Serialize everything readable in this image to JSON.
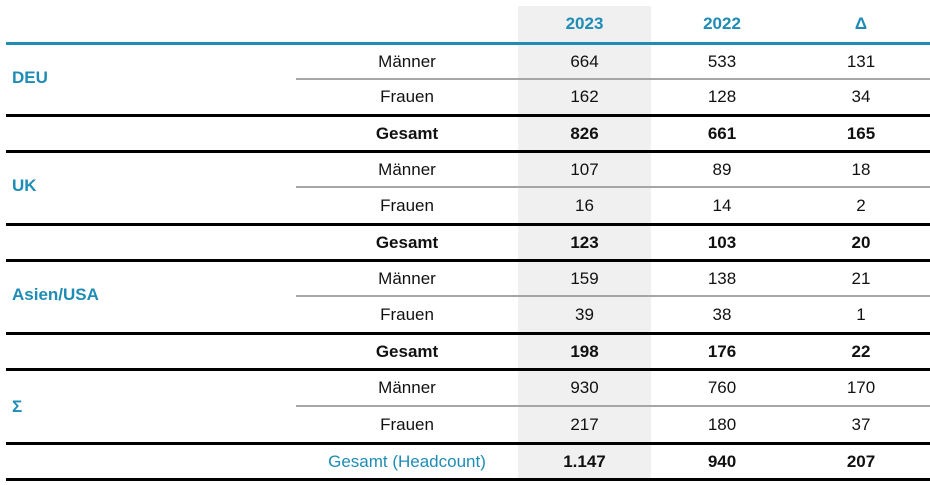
{
  "header": {
    "col_2023": "2023",
    "col_2022": "2022",
    "col_delta": "Δ"
  },
  "groups": [
    {
      "region": "DEU",
      "rows": [
        {
          "category": "Männer",
          "v2023": "664",
          "v2022": "533",
          "delta": "131"
        },
        {
          "category": "Frauen",
          "v2023": "162",
          "v2022": "128",
          "delta": "34"
        },
        {
          "category": "Gesamt",
          "v2023": "826",
          "v2022": "661",
          "delta": "165"
        }
      ]
    },
    {
      "region": "UK",
      "rows": [
        {
          "category": "Männer",
          "v2023": "107",
          "v2022": "89",
          "delta": "18"
        },
        {
          "category": "Frauen",
          "v2023": "16",
          "v2022": "14",
          "delta": "2"
        },
        {
          "category": "Gesamt",
          "v2023": "123",
          "v2022": "103",
          "delta": "20"
        }
      ]
    },
    {
      "region": "Asien/USA",
      "rows": [
        {
          "category": "Männer",
          "v2023": "159",
          "v2022": "138",
          "delta": "21"
        },
        {
          "category": "Frauen",
          "v2023": "39",
          "v2022": "38",
          "delta": "1"
        },
        {
          "category": "Gesamt",
          "v2023": "198",
          "v2022": "176",
          "delta": "22"
        }
      ]
    },
    {
      "region": "Σ",
      "rows": [
        {
          "category": "Männer",
          "v2023": "930",
          "v2022": "760",
          "delta": "170"
        },
        {
          "category": "Frauen",
          "v2023": "217",
          "v2022": "180",
          "delta": "37"
        },
        {
          "category": "Gesamt (Headcount)",
          "v2023": "1.147",
          "v2022": "940",
          "delta": "207"
        }
      ]
    }
  ],
  "colors": {
    "accent": "#1e8cb4",
    "highlight": "#f0f0f0",
    "thin_rule": "#a6a6a6",
    "thick_rule": "#000000"
  }
}
